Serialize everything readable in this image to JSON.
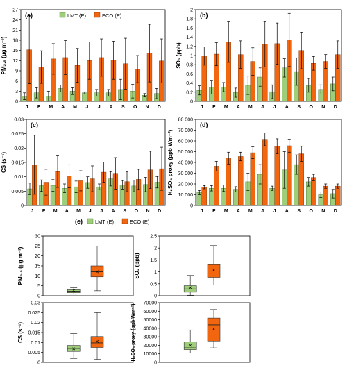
{
  "colors": {
    "lmt": "#9fce7a",
    "lmt_edge": "#3f6e2a",
    "eco": "#f1660f",
    "eco_edge": "#7a2a00"
  },
  "months": [
    "J",
    "F",
    "M",
    "A",
    "M",
    "J",
    "J",
    "A",
    "S",
    "O",
    "N",
    "D"
  ],
  "chart_data": [
    {
      "panel": "(a)",
      "type": "bar",
      "ylabel": "PM₂.₅ (µg m⁻³)",
      "ylim": [
        0,
        27
      ],
      "yticks": [
        0,
        3,
        6,
        9,
        12,
        15,
        18,
        21,
        24,
        27
      ],
      "legend": [
        "LMT (E)",
        "ECO (E)"
      ],
      "legend_position": "top",
      "series": [
        {
          "name": "LMT (E)",
          "values": [
            1.5,
            2.5,
            1.5,
            3.8,
            3.0,
            2.5,
            2.5,
            2.5,
            3.5,
            3.0,
            1.8,
            2.3
          ],
          "err": [
            1.0,
            1.5,
            1.5,
            1.0,
            1.0,
            0.3,
            1.0,
            1.0,
            3.0,
            2.0,
            0.5,
            1.5
          ]
        },
        {
          "name": "ECO (E)",
          "values": [
            15.2,
            10.1,
            12.5,
            12.9,
            10.6,
            12.0,
            12.9,
            12.1,
            11.1,
            9.5,
            14.2,
            11.9
          ],
          "err": [
            10.0,
            4.8,
            4.5,
            5.0,
            5.0,
            5.5,
            5.5,
            5.6,
            7.5,
            4.0,
            8.5,
            6.5
          ]
        }
      ]
    },
    {
      "panel": "(b)",
      "type": "bar",
      "ylabel": "SO₂ (ppb)",
      "ylim": [
        0,
        2
      ],
      "yticks": [
        0,
        0.2,
        0.4,
        0.6,
        0.8,
        1,
        1.2,
        1.4,
        1.6,
        1.8,
        2
      ],
      "ytick_labels": [
        "0",
        "0.2",
        "0.4",
        "0.6",
        "0.8",
        "1",
        "1.2",
        "1.4",
        "1.6",
        "1.8",
        "2"
      ],
      "series": [
        {
          "name": "LMT (E)",
          "values": [
            0.24,
            0.31,
            0.31,
            0.19,
            0.35,
            0.53,
            0.21,
            0.73,
            0.65,
            0.35,
            0.26,
            0.38
          ],
          "err": [
            0.1,
            0.15,
            0.1,
            0.1,
            0.2,
            0.2,
            0.15,
            0.2,
            0.3,
            0.15,
            0.1,
            0.15
          ]
        },
        {
          "name": "ECO (E)",
          "values": [
            0.99,
            1.03,
            1.3,
            1.02,
            0.87,
            1.25,
            1.26,
            1.34,
            1.11,
            0.83,
            0.87,
            1.02
          ],
          "err": [
            0.2,
            0.25,
            0.45,
            0.3,
            0.3,
            0.5,
            0.45,
            0.58,
            0.4,
            0.15,
            0.15,
            0.3
          ]
        }
      ]
    },
    {
      "panel": "(c)",
      "type": "bar",
      "ylabel": "CS (s⁻¹)",
      "ylim": [
        0,
        0.03
      ],
      "yticks": [
        0,
        0.005,
        0.01,
        0.015,
        0.02,
        0.025,
        0.03
      ],
      "ytick_labels": [
        "0",
        "0.005",
        "0.01",
        "0.015",
        "0.02",
        "0.025",
        "0.03"
      ],
      "series": [
        {
          "name": "LMT (E)",
          "values": [
            0.0058,
            0.0069,
            0.007,
            0.006,
            0.0065,
            0.008,
            0.0065,
            0.0093,
            0.0072,
            0.0068,
            0.0073,
            0.0081
          ],
          "err": [
            0.002,
            0.002,
            0.002,
            0.0015,
            0.002,
            0.002,
            0.001,
            0.0025,
            0.0015,
            0.002,
            0.0025,
            0.002
          ]
        },
        {
          "name": "ECO (E)",
          "values": [
            0.0142,
            0.0081,
            0.0118,
            0.0102,
            0.0086,
            0.0093,
            0.0116,
            0.0112,
            0.0083,
            0.0091,
            0.0124,
            0.0128
          ],
          "err": [
            0.0103,
            0.0045,
            0.0055,
            0.004,
            0.0035,
            0.0045,
            0.0035,
            0.0055,
            0.0035,
            0.0035,
            0.0065,
            0.0075
          ]
        }
      ]
    },
    {
      "panel": "(d)",
      "type": "bar",
      "ylabel": "H₂SO₄ proxy (ppb Wm⁻²)",
      "ylim": [
        0,
        80000
      ],
      "yticks": [
        0,
        10000,
        20000,
        30000,
        40000,
        50000,
        60000,
        70000,
        80000
      ],
      "ytick_labels": [
        "0",
        "10 000",
        "20 000",
        "30 000",
        "40 000",
        "50 000",
        "60 000",
        "70 000",
        "80 000"
      ],
      "series": [
        {
          "name": "LMT (E)",
          "values": [
            12000,
            16000,
            16000,
            15000,
            22000,
            29000,
            16000,
            33000,
            38000,
            22000,
            10000,
            11000
          ],
          "err": [
            2000,
            2500,
            3000,
            2500,
            8000,
            9000,
            2000,
            17000,
            9000,
            4000,
            2500,
            4000
          ]
        },
        {
          "name": "ECO (E)",
          "values": [
            17000,
            36500,
            44000,
            45500,
            49000,
            61500,
            55000,
            55500,
            48000,
            26000,
            18000,
            18000
          ],
          "err": [
            1500,
            4500,
            5500,
            4000,
            5500,
            6000,
            7000,
            6000,
            7000,
            3000,
            2000,
            2000
          ]
        }
      ]
    },
    {
      "panel": "(e)",
      "type": "box",
      "legend": [
        "LMT (E)",
        "ECO (E)"
      ],
      "legend_position": "top",
      "boxes": [
        {
          "ylabel": "PM₂.₅ (µg m⁻³)",
          "ylim": [
            0,
            30
          ],
          "yticks": [
            0,
            5,
            10,
            15,
            20,
            25,
            30
          ],
          "ytick_labels": [
            "0",
            "5",
            "10",
            "15",
            "20",
            "25",
            "30"
          ],
          "LMT": {
            "min": 0.8,
            "q1": 1.5,
            "median": 2.3,
            "q3": 3.0,
            "max": 4.0,
            "mean": 2.7
          },
          "ECO": {
            "min": 2.5,
            "q1": 9.5,
            "median": 12.0,
            "q3": 15.0,
            "max": 25.0,
            "mean": 12.0
          }
        },
        {
          "ylabel": "SO₂ (ppb)",
          "ylim": [
            0,
            2.5
          ],
          "yticks": [
            0,
            0.5,
            1,
            1.5,
            2,
            2.5
          ],
          "ytick_labels": [
            "0",
            "0.5",
            "1",
            "1.5",
            "2",
            "2.5"
          ],
          "LMT": {
            "min": 0.02,
            "q1": 0.15,
            "median": 0.28,
            "q3": 0.42,
            "max": 0.85,
            "mean": 0.33
          },
          "ECO": {
            "min": 0.45,
            "q1": 0.77,
            "median": 1.03,
            "q3": 1.3,
            "max": 2.1,
            "mean": 1.08
          }
        },
        {
          "ylabel": "CS (s⁻¹)",
          "ylim": [
            0,
            0.03
          ],
          "yticks": [
            0,
            0.005,
            0.01,
            0.015,
            0.02,
            0.025,
            0.03
          ],
          "ytick_labels": [
            "0",
            "0.005",
            "0.01",
            "0.015",
            "0.02",
            "0.025",
            "0.03"
          ],
          "LMT": {
            "min": 0.002,
            "q1": 0.0055,
            "median": 0.007,
            "q3": 0.0085,
            "max": 0.0145,
            "mean": 0.0068
          },
          "ECO": {
            "min": 0.0015,
            "q1": 0.0075,
            "median": 0.0098,
            "q3": 0.013,
            "max": 0.025,
            "mean": 0.0105
          }
        },
        {
          "ylabel": "H₂SO₄ proxy (ppb Wm⁻²)",
          "ylim": [
            0,
            70000
          ],
          "yticks": [
            0,
            10000,
            20000,
            30000,
            40000,
            50000,
            60000,
            70000
          ],
          "ytick_labels": [
            "0",
            "10000",
            "20000",
            "30000",
            "40000",
            "50000",
            "60000",
            "70000"
          ],
          "LMT": {
            "min": 11000,
            "q1": 15000,
            "median": 17000,
            "q3": 24000,
            "max": 38000,
            "mean": 20000
          },
          "ECO": {
            "min": 17000,
            "q1": 25000,
            "median": 44000,
            "q3": 52000,
            "max": 62000,
            "mean": 39000
          }
        }
      ]
    }
  ]
}
